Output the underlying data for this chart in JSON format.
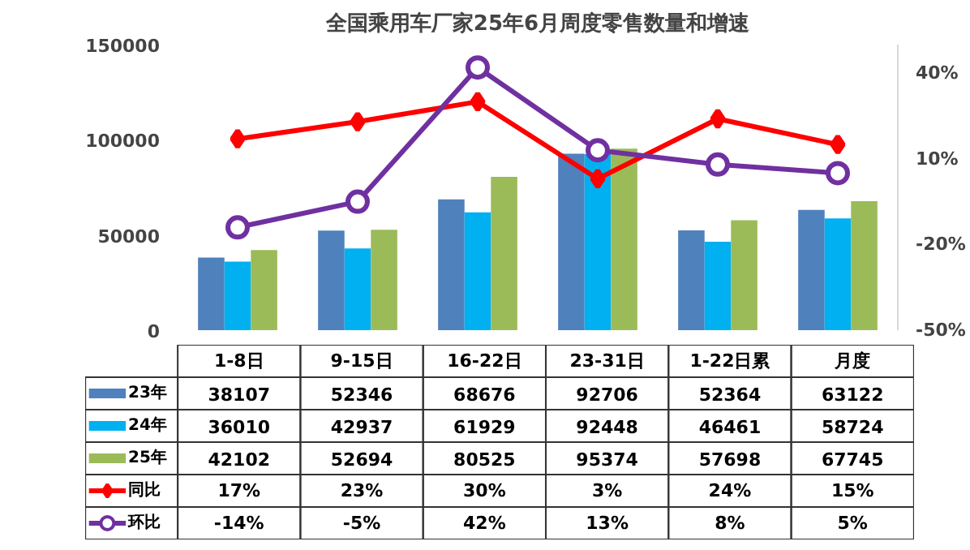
{
  "chart_data": {
    "type": "bar",
    "title": "全国乘用车厂家25年6月周度零售数量和增速",
    "categories": [
      "1-8日",
      "9-15日",
      "16-22日",
      "23-31日",
      "1-22日累",
      "月度"
    ],
    "ylim": [
      0,
      150000
    ],
    "yticks": [
      0,
      50000,
      100000,
      150000
    ],
    "y2lim": [
      -50,
      50
    ],
    "y2ticks": [
      {
        "value": -50,
        "label": "-50%"
      },
      {
        "value": -20,
        "label": "-20%"
      },
      {
        "value": 10,
        "label": "10%"
      },
      {
        "value": 40,
        "label": "40%"
      }
    ],
    "grid": false,
    "legend": "bottom",
    "data_labels": true,
    "series": [
      {
        "name": "23年",
        "color": "#4f81bd",
        "values": [
          38107,
          52346,
          68676,
          92706,
          52364,
          63122
        ]
      },
      {
        "name": "24年",
        "color": "#00b0f0",
        "values": [
          36010,
          42937,
          61929,
          92448,
          46461,
          58724
        ]
      },
      {
        "name": "25年",
        "color": "#9bbb59",
        "values": [
          42102,
          52694,
          80525,
          95374,
          57698,
          67745
        ]
      },
      {
        "name": "同比",
        "type": "line",
        "axis": "y2",
        "color": "#ff0000",
        "marker": "diamond",
        "values": [
          17,
          23,
          30,
          3,
          24,
          15
        ],
        "value_labels": [
          "17%",
          "23%",
          "30%",
          "3%",
          "24%",
          "15%"
        ]
      },
      {
        "name": "环比",
        "type": "line",
        "axis": "y2",
        "color": "#7030a0",
        "marker": "circle",
        "values": [
          -14,
          -5,
          42,
          13,
          8,
          5
        ],
        "value_labels": [
          "-14%",
          "-5%",
          "42%",
          "13%",
          "8%",
          "5%"
        ]
      }
    ]
  }
}
